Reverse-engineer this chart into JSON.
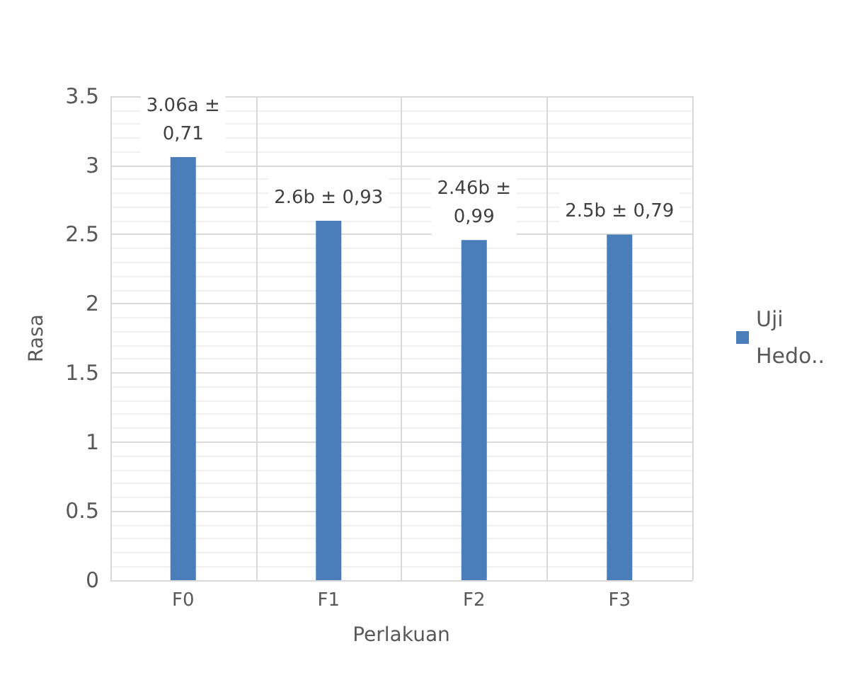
{
  "chart_data": {
    "type": "bar",
    "xlabel": "Perlakuan",
    "ylabel": "Rasa",
    "categories": [
      "F0",
      "F1",
      "F2",
      "F3"
    ],
    "series": [
      {
        "name": "Uji Hedo..",
        "color": "#4a7ebb",
        "values": [
          3.06,
          2.6,
          2.46,
          2.5
        ]
      }
    ],
    "annotations": [
      {
        "text": "3.06a ± 0,71",
        "x": "F0",
        "y": 3.06
      },
      {
        "text": "2.6b ± 0,93",
        "x": "F1",
        "y": 2.6
      },
      {
        "text": "2.46b ± 0,99",
        "x": "F2",
        "y": 2.46
      },
      {
        "text": "2.5b ± 0,79",
        "x": "F3",
        "y": 2.5
      }
    ],
    "ylim": [
      0,
      3.5
    ],
    "yticks": [
      0,
      0.5,
      1,
      1.5,
      2,
      2.5,
      3,
      3.5
    ],
    "grid": true,
    "legend": "right"
  }
}
